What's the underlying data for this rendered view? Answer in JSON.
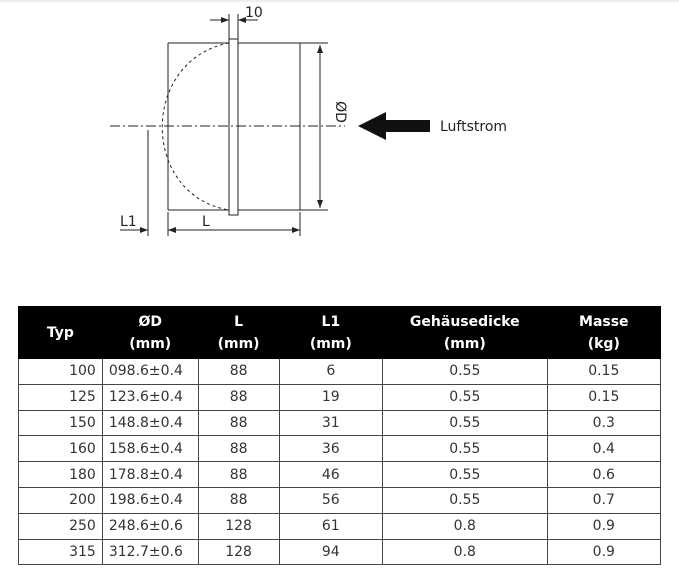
{
  "diagram": {
    "labels": {
      "thickness": "10",
      "diameter": "ØD",
      "airflow": "Luftstrom",
      "l1": "L1",
      "l": "L"
    }
  },
  "table": {
    "header": [
      [
        "Typ"
      ],
      [
        "ØD",
        "(mm)"
      ],
      [
        "L",
        "(mm)"
      ],
      [
        "L1",
        "(mm)"
      ],
      [
        "Gehäusedicke",
        "(mm)"
      ],
      [
        "Masse",
        "(kg)"
      ]
    ],
    "rows": [
      [
        "100",
        "098.6±0.4",
        "88",
        "6",
        "0.55",
        "0.15"
      ],
      [
        "125",
        "123.6±0.4",
        "88",
        "19",
        "0.55",
        "0.15"
      ],
      [
        "150",
        "148.8±0.4",
        "88",
        "31",
        "0.55",
        "0.3"
      ],
      [
        "160",
        "158.6±0.4",
        "88",
        "36",
        "0.55",
        "0.4"
      ],
      [
        "180",
        "178.8±0.4",
        "88",
        "46",
        "0.55",
        "0.6"
      ],
      [
        "200",
        "198.6±0.4",
        "88",
        "56",
        "0.55",
        "0.7"
      ],
      [
        "250",
        "248.6±0.6",
        "128",
        "61",
        "0.8",
        "0.9"
      ],
      [
        "315",
        "312.7±0.6",
        "128",
        "94",
        "0.8",
        "0.9"
      ]
    ]
  }
}
